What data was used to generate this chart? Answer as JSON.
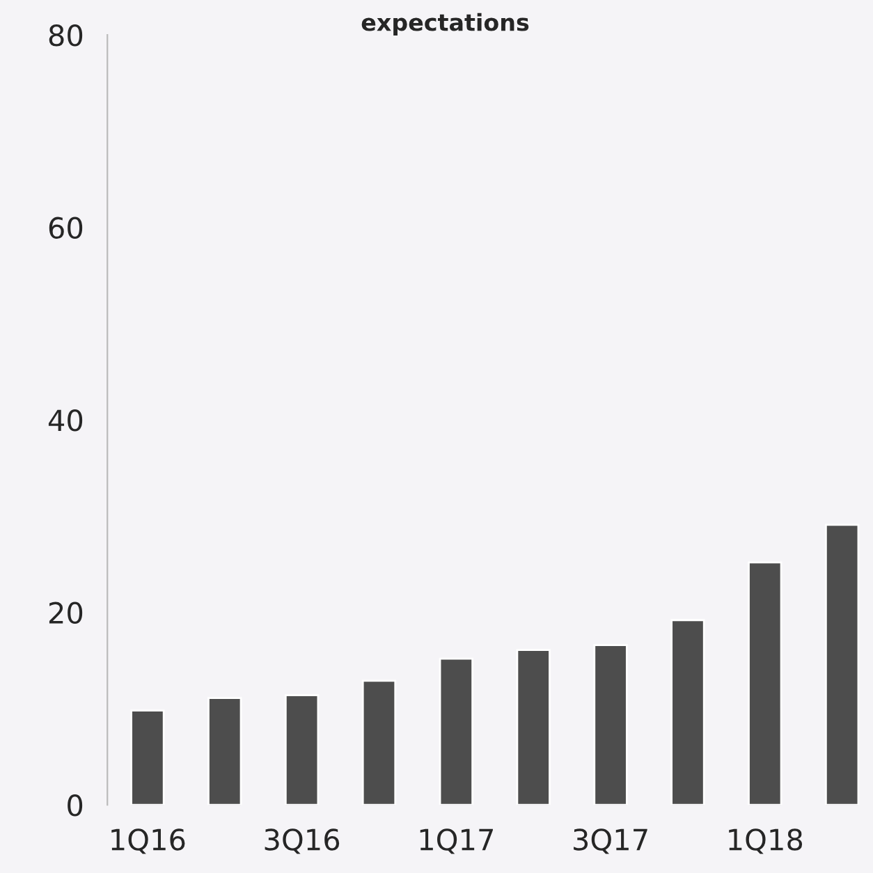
{
  "chart_data": {
    "type": "bar",
    "title": "expectations",
    "categories": [
      "1Q16",
      null,
      "3Q16",
      null,
      "1Q17",
      null,
      "3Q17",
      null,
      "1Q18",
      null
    ],
    "values": [
      9.8,
      11.1,
      11.4,
      12.9,
      15.2,
      16.1,
      16.6,
      19.2,
      25.2,
      29.1
    ],
    "color": "#4d4d4d",
    "ylim": [
      0,
      80
    ],
    "yticks": [
      0,
      20,
      40,
      60,
      80
    ],
    "grid": false,
    "legend": false
  }
}
